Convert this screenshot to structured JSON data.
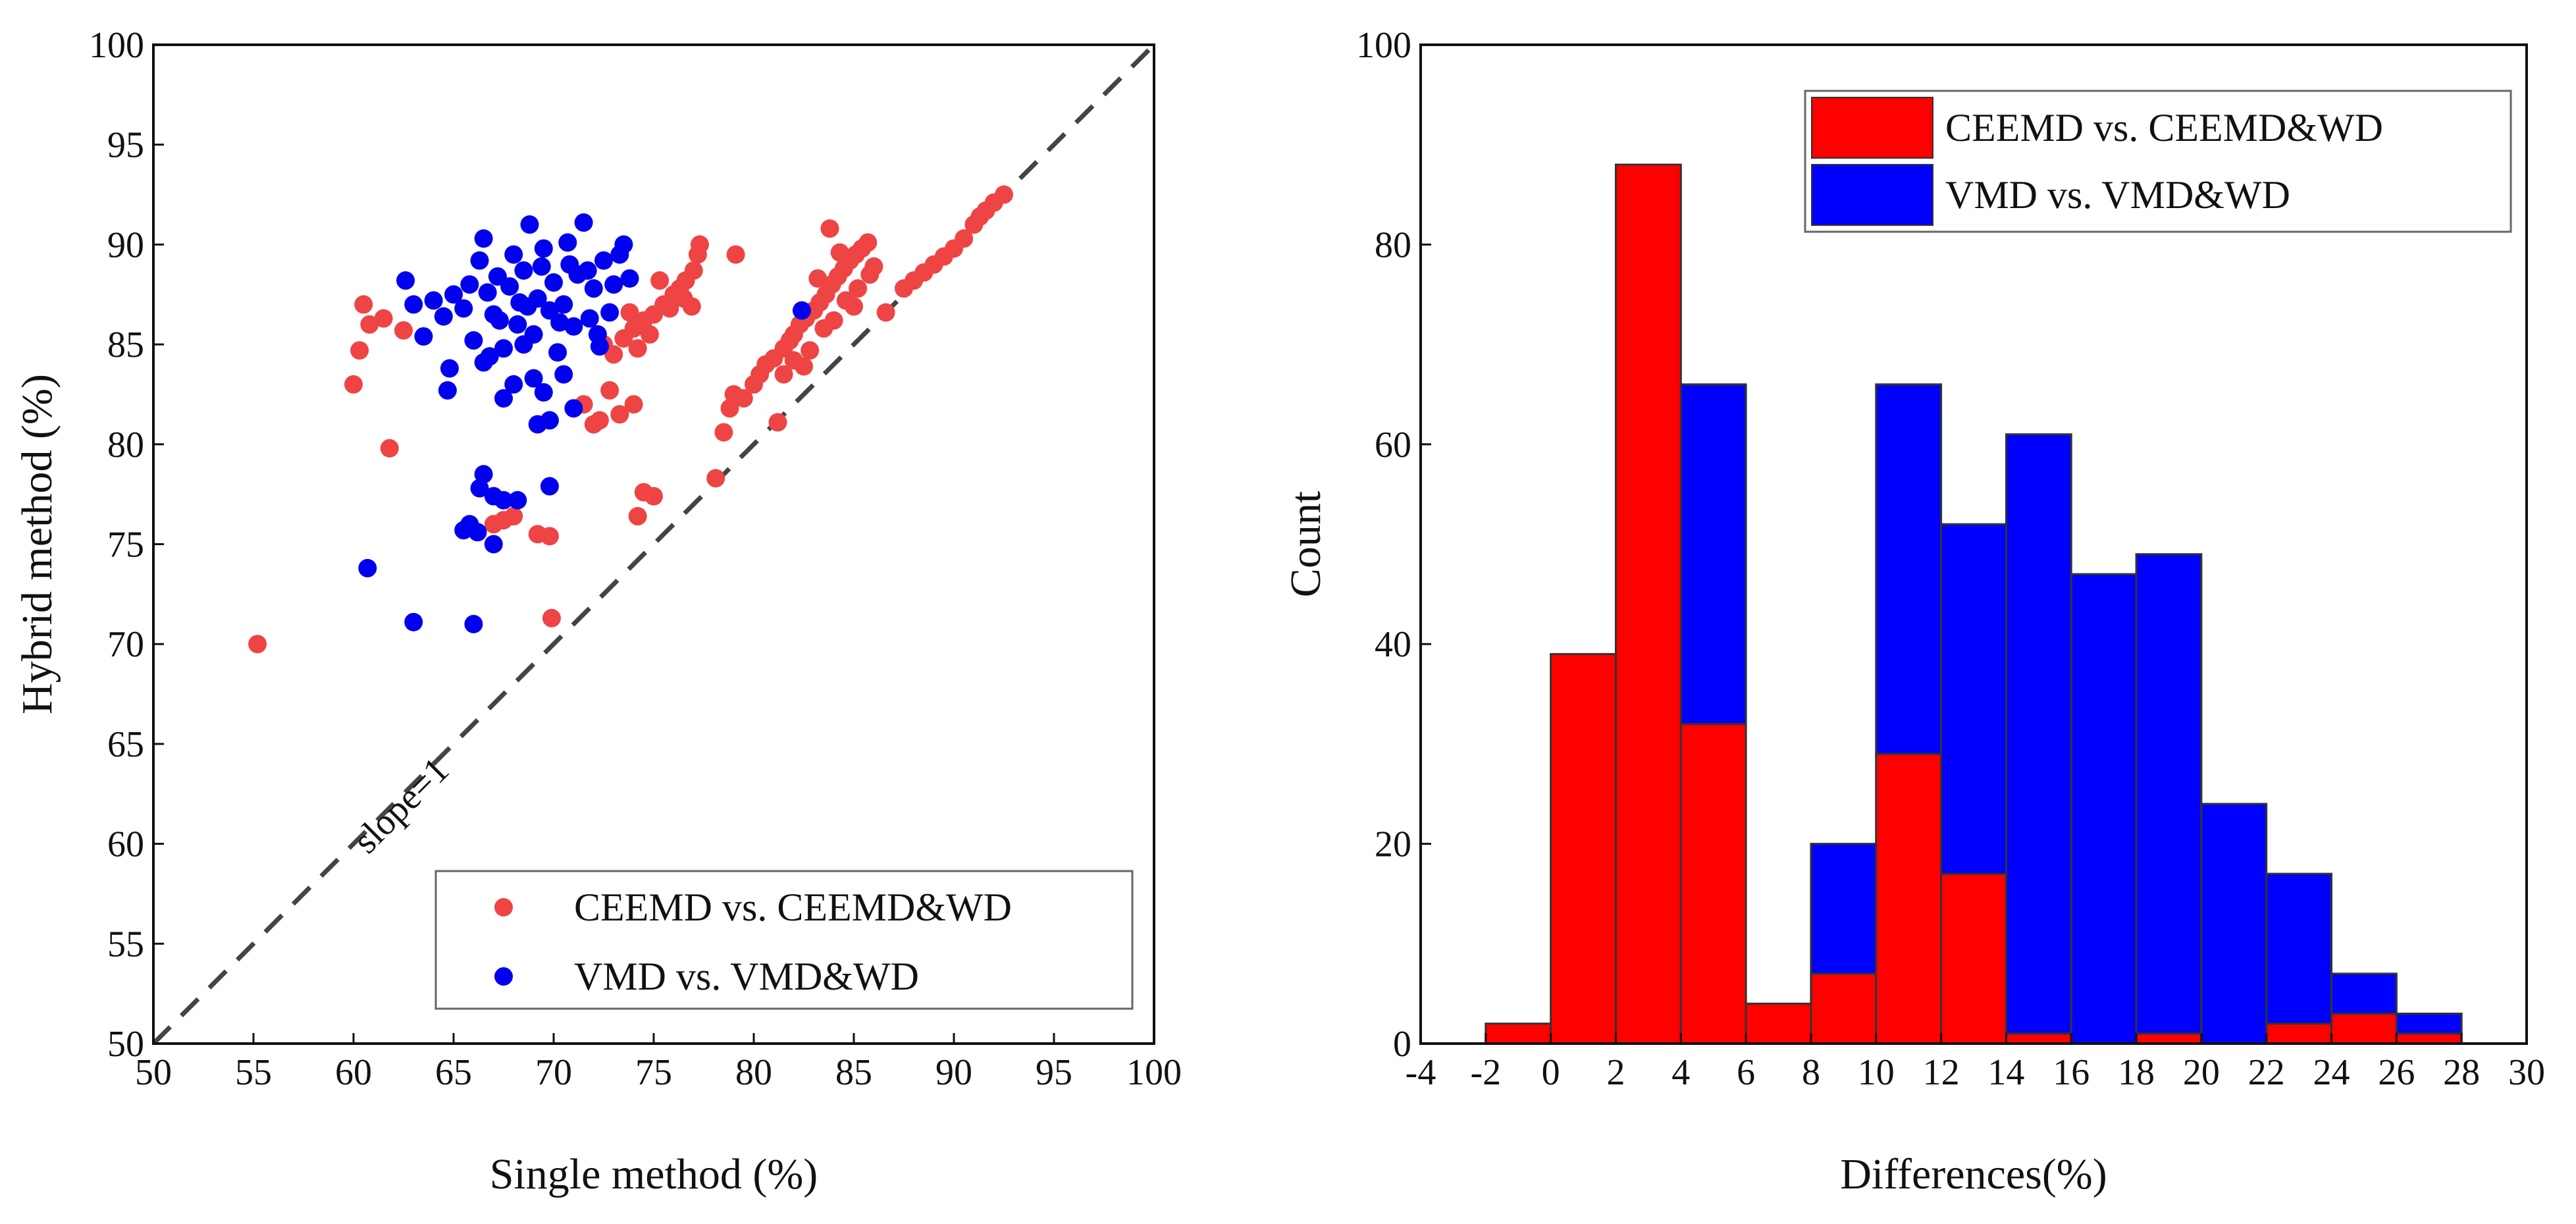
{
  "chart_data": [
    {
      "type": "scatter",
      "xlabel": "Single method (%)",
      "ylabel": "Hybrid method (%)",
      "xlim": [
        50,
        100
      ],
      "ylim": [
        50,
        100
      ],
      "xticks": [
        "50",
        "55",
        "60",
        "65",
        "70",
        "75",
        "80",
        "85",
        "90",
        "95",
        "100"
      ],
      "yticks": [
        "50",
        "55",
        "60",
        "65",
        "70",
        "75",
        "80",
        "85",
        "90",
        "95",
        "100"
      ],
      "reference_line": {
        "slope": 1,
        "label": "slope=1",
        "style": "dashed"
      },
      "legend_position": "bottom-right",
      "colors": {
        "red": "#ee4444",
        "blue": "#0000ee"
      },
      "series": [
        {
          "name": "CEEMD  vs.  CEEMD&WD",
          "color": "#ee4444",
          "points": [
            [
              55.2,
              70.0
            ],
            [
              60.0,
              83.0
            ],
            [
              60.3,
              84.7
            ],
            [
              60.5,
              87.0
            ],
            [
              60.8,
              86.0
            ],
            [
              61.5,
              86.3
            ],
            [
              61.8,
              79.8
            ],
            [
              62.5,
              85.7
            ],
            [
              67.0,
              76.0
            ],
            [
              67.5,
              76.2
            ],
            [
              68.0,
              76.4
            ],
            [
              69.2,
              75.5
            ],
            [
              69.8,
              75.4
            ],
            [
              69.9,
              71.3
            ],
            [
              71.5,
              82.0
            ],
            [
              72.0,
              81.0
            ],
            [
              72.3,
              81.2
            ],
            [
              72.8,
              82.7
            ],
            [
              73.3,
              81.5
            ],
            [
              74.0,
              82.0
            ],
            [
              74.2,
              76.4
            ],
            [
              74.5,
              77.6
            ],
            [
              75.0,
              77.4
            ],
            [
              72.5,
              85.0
            ],
            [
              73.0,
              84.5
            ],
            [
              73.5,
              85.3
            ],
            [
              74.0,
              85.8
            ],
            [
              74.5,
              86.2
            ],
            [
              75.0,
              86.5
            ],
            [
              75.5,
              87.0
            ],
            [
              76.0,
              87.5
            ],
            [
              76.3,
              87.8
            ],
            [
              76.6,
              88.2
            ],
            [
              77.0,
              88.7
            ],
            [
              77.2,
              89.5
            ],
            [
              77.3,
              90.0
            ],
            [
              75.8,
              86.8
            ],
            [
              76.5,
              87.3
            ],
            [
              74.8,
              85.5
            ],
            [
              73.8,
              86.6
            ],
            [
              74.2,
              84.8
            ],
            [
              76.9,
              86.9
            ],
            [
              75.3,
              88.2
            ],
            [
              78.1,
              78.3
            ],
            [
              78.5,
              80.6
            ],
            [
              78.8,
              81.8
            ],
            [
              79.0,
              82.5
            ],
            [
              79.1,
              89.5
            ],
            [
              79.5,
              82.3
            ],
            [
              80.0,
              83.0
            ],
            [
              80.3,
              83.5
            ],
            [
              80.6,
              84.0
            ],
            [
              81.0,
              84.3
            ],
            [
              81.2,
              81.1
            ],
            [
              81.5,
              84.8
            ],
            [
              81.8,
              85.2
            ],
            [
              82.0,
              85.5
            ],
            [
              82.3,
              86.0
            ],
            [
              82.6,
              86.3
            ],
            [
              83.0,
              86.7
            ],
            [
              83.3,
              87.1
            ],
            [
              83.6,
              87.5
            ],
            [
              83.9,
              88.0
            ],
            [
              84.2,
              88.4
            ],
            [
              84.5,
              88.8
            ],
            [
              84.8,
              89.2
            ],
            [
              85.1,
              89.5
            ],
            [
              85.4,
              89.8
            ],
            [
              85.7,
              90.1
            ],
            [
              83.8,
              90.8
            ],
            [
              84.0,
              86.2
            ],
            [
              83.5,
              85.8
            ],
            [
              82.8,
              84.7
            ],
            [
              82.0,
              84.2
            ],
            [
              81.5,
              83.5
            ],
            [
              84.6,
              87.2
            ],
            [
              85.2,
              87.8
            ],
            [
              85.8,
              88.5
            ],
            [
              86.0,
              88.9
            ],
            [
              84.3,
              89.6
            ],
            [
              82.5,
              83.9
            ],
            [
              83.2,
              88.3
            ],
            [
              85.0,
              86.9
            ],
            [
              86.6,
              86.6
            ],
            [
              87.5,
              87.8
            ],
            [
              88.0,
              88.2
            ],
            [
              88.5,
              88.6
            ],
            [
              89.0,
              89.0
            ],
            [
              89.5,
              89.4
            ],
            [
              90.0,
              89.8
            ],
            [
              90.5,
              90.3
            ],
            [
              91.0,
              91.0
            ],
            [
              91.3,
              91.4
            ],
            [
              91.6,
              91.7
            ],
            [
              92.0,
              92.1
            ],
            [
              92.5,
              92.5
            ]
          ]
        },
        {
          "name": "VMD  vs.  VMD&WD",
          "color": "#0000ee",
          "points": [
            [
              62.6,
              88.2
            ],
            [
              63.0,
              87.0
            ],
            [
              63.5,
              85.4
            ],
            [
              64.0,
              87.2
            ],
            [
              64.5,
              86.4
            ],
            [
              65.0,
              87.5
            ],
            [
              64.8,
              83.8
            ],
            [
              64.7,
              82.7
            ],
            [
              65.5,
              86.8
            ],
            [
              65.8,
              88.0
            ],
            [
              66.0,
              85.2
            ],
            [
              66.3,
              89.2
            ],
            [
              66.5,
              90.3
            ],
            [
              66.7,
              87.6
            ],
            [
              67.0,
              86.5
            ],
            [
              67.2,
              88.4
            ],
            [
              67.5,
              84.8
            ],
            [
              67.8,
              87.9
            ],
            [
              68.0,
              89.5
            ],
            [
              68.2,
              86.0
            ],
            [
              68.5,
              88.7
            ],
            [
              68.8,
              91.0
            ],
            [
              69.0,
              85.5
            ],
            [
              69.2,
              87.3
            ],
            [
              69.5,
              89.8
            ],
            [
              69.8,
              86.7
            ],
            [
              70.0,
              88.1
            ],
            [
              70.2,
              84.6
            ],
            [
              70.5,
              87.0
            ],
            [
              70.8,
              89.0
            ],
            [
              71.0,
              85.9
            ],
            [
              71.2,
              88.5
            ],
            [
              71.5,
              91.1
            ],
            [
              71.8,
              86.3
            ],
            [
              72.0,
              87.8
            ],
            [
              72.3,
              84.9
            ],
            [
              72.5,
              89.2
            ],
            [
              72.8,
              86.6
            ],
            [
              73.0,
              88.0
            ],
            [
              73.3,
              89.5
            ],
            [
              73.5,
              90.0
            ],
            [
              73.8,
              88.3
            ],
            [
              68.5,
              85.0
            ],
            [
              69.0,
              83.3
            ],
            [
              69.5,
              82.6
            ],
            [
              68.0,
              83.0
            ],
            [
              67.5,
              82.3
            ],
            [
              70.5,
              83.5
            ],
            [
              71.0,
              81.8
            ],
            [
              69.8,
              81.2
            ],
            [
              69.2,
              81.0
            ],
            [
              72.2,
              85.5
            ],
            [
              70.3,
              86.1
            ],
            [
              68.7,
              86.9
            ],
            [
              67.3,
              86.2
            ],
            [
              66.8,
              84.4
            ],
            [
              71.7,
              88.7
            ],
            [
              70.7,
              90.1
            ],
            [
              69.4,
              88.9
            ],
            [
              68.3,
              87.1
            ],
            [
              66.5,
              84.1
            ],
            [
              67.0,
              77.4
            ],
            [
              67.5,
              77.2
            ],
            [
              68.2,
              77.2
            ],
            [
              66.3,
              77.8
            ],
            [
              66.5,
              78.5
            ],
            [
              65.5,
              75.7
            ],
            [
              65.8,
              76.0
            ],
            [
              66.2,
              75.6
            ],
            [
              67.0,
              75.0
            ],
            [
              60.7,
              73.8
            ],
            [
              63.0,
              71.1
            ],
            [
              66.0,
              71.0
            ],
            [
              69.8,
              77.9
            ],
            [
              82.4,
              86.7
            ]
          ]
        }
      ]
    },
    {
      "type": "bar",
      "stacked": true,
      "xlabel": "Differences(%)",
      "ylabel": "Count",
      "xlim": [
        -4,
        30
      ],
      "ylim": [
        0,
        100
      ],
      "xticks": [
        "-4",
        "-2",
        "0",
        "2",
        "4",
        "6",
        "8",
        "10",
        "12",
        "14",
        "16",
        "18",
        "20",
        "22",
        "24",
        "26",
        "28",
        "30"
      ],
      "yticks": [
        "0",
        "20",
        "40",
        "60",
        "80",
        "100"
      ],
      "bin_width": 2,
      "bin_starts": [
        -2,
        0,
        2,
        4,
        6,
        8,
        10,
        12,
        14,
        16,
        18,
        20,
        22,
        24,
        26
      ],
      "legend_position": "top-right",
      "series": [
        {
          "name": "CEEMD  vs.  CEEMD&WD",
          "color": "#ff0000",
          "values": [
            2,
            39,
            88,
            32,
            4,
            7,
            29,
            17,
            1,
            0,
            1,
            0,
            2,
            3,
            1
          ]
        },
        {
          "name": "VMD  vs.  VMD&WD",
          "color": "#0000ff",
          "values": [
            0,
            0,
            0,
            34,
            0,
            13,
            37,
            35,
            60,
            47,
            48,
            24,
            15,
            4,
            2
          ]
        }
      ]
    }
  ]
}
